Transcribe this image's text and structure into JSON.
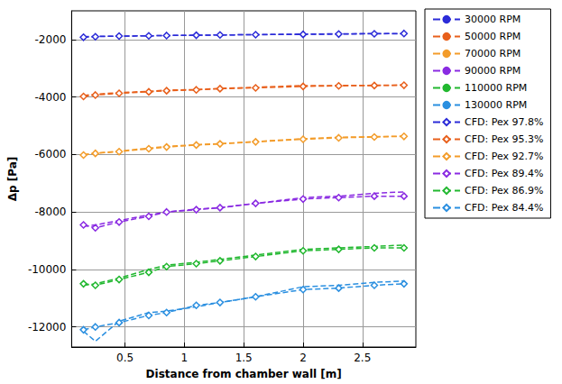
{
  "chart_data": {
    "type": "line",
    "x_label": "Distance from chamber wall [m]",
    "y_label": "Δp [Pa]",
    "xlim": [
      0.05,
      2.95
    ],
    "xticks": [
      0.5,
      1,
      1.5,
      2,
      2.5
    ],
    "ylim": [
      -12700,
      -1000
    ],
    "yticks": [
      -12000,
      -10000,
      -8000,
      -6000,
      -4000,
      -2000
    ],
    "grid": true,
    "legend": "right",
    "x": [
      0.15,
      0.25,
      0.45,
      0.7,
      0.85,
      1.1,
      1.3,
      1.6,
      2.0,
      2.3,
      2.6,
      2.85
    ],
    "series": [
      {
        "name": "30000 RPM",
        "color": "#2c2cd8",
        "marker": "none",
        "line_style": "dashed",
        "values": [
          -1900,
          -1890,
          -1880,
          -1870,
          -1860,
          -1850,
          -1840,
          -1830,
          -1810,
          -1800,
          -1790,
          -1800
        ]
      },
      {
        "name": "50000 RPM",
        "color": "#e8601c",
        "marker": "none",
        "line_style": "dashed",
        "values": [
          -3950,
          -3900,
          -3850,
          -3800,
          -3760,
          -3740,
          -3700,
          -3660,
          -3600,
          -3600,
          -3590,
          -3580
        ]
      },
      {
        "name": "70000 RPM",
        "color": "#f39c2a",
        "marker": "none",
        "line_style": "dashed",
        "values": [
          -6000,
          -5950,
          -5880,
          -5780,
          -5720,
          -5660,
          -5620,
          -5550,
          -5450,
          -5400,
          -5380,
          -5360
        ]
      },
      {
        "name": "90000 RPM",
        "color": "#8a2be2",
        "marker": "none",
        "line_style": "dashed",
        "values": [
          -8500,
          -8450,
          -8300,
          -8100,
          -8000,
          -7900,
          -7850,
          -7700,
          -7500,
          -7450,
          -7350,
          -7300
        ]
      },
      {
        "name": "110000 RPM",
        "color": "#22b830",
        "marker": "none",
        "line_style": "dashed",
        "values": [
          -10550,
          -10500,
          -10300,
          -10000,
          -9850,
          -9750,
          -9650,
          -9500,
          -9300,
          -9250,
          -9200,
          -9150
        ]
      },
      {
        "name": "130000 RPM",
        "color": "#2a8fe0",
        "marker": "none",
        "line_style": "dashed",
        "values": [
          -12150,
          -12500,
          -11800,
          -11500,
          -11450,
          -11300,
          -11150,
          -10950,
          -10600,
          -10550,
          -10450,
          -10400
        ]
      },
      {
        "name": "CFD: Pex 97.8%",
        "color": "#2c2cd8",
        "marker": "diamond",
        "line_style": "dashed",
        "values": [
          -1920,
          -1900,
          -1880,
          -1870,
          -1860,
          -1850,
          -1840,
          -1830,
          -1820,
          -1810,
          -1800,
          -1790
        ]
      },
      {
        "name": "CFD: Pex 95.3%",
        "color": "#e8601c",
        "marker": "diamond",
        "line_style": "dashed",
        "values": [
          -3980,
          -3930,
          -3870,
          -3820,
          -3780,
          -3750,
          -3710,
          -3680,
          -3630,
          -3610,
          -3600,
          -3590
        ]
      },
      {
        "name": "CFD: Pex 92.7%",
        "color": "#f39c2a",
        "marker": "diamond",
        "line_style": "dashed",
        "values": [
          -6020,
          -5960,
          -5900,
          -5800,
          -5740,
          -5670,
          -5630,
          -5560,
          -5470,
          -5420,
          -5390,
          -5370
        ]
      },
      {
        "name": "CFD: Pex 89.4%",
        "color": "#8a2be2",
        "marker": "diamond",
        "line_style": "dashed",
        "values": [
          -8450,
          -8550,
          -8350,
          -8150,
          -8000,
          -7920,
          -7850,
          -7700,
          -7550,
          -7500,
          -7450,
          -7450
        ]
      },
      {
        "name": "CFD: Pex 86.9%",
        "color": "#22b830",
        "marker": "diamond",
        "line_style": "dashed",
        "values": [
          -10500,
          -10550,
          -10350,
          -10100,
          -9900,
          -9800,
          -9700,
          -9550,
          -9350,
          -9300,
          -9250,
          -9250
        ]
      },
      {
        "name": "CFD: Pex 84.4%",
        "color": "#2a8fe0",
        "marker": "diamond",
        "line_style": "dashed",
        "values": [
          -12100,
          -12000,
          -11850,
          -11600,
          -11500,
          -11250,
          -11150,
          -10950,
          -10700,
          -10650,
          -10550,
          -10500
        ]
      }
    ]
  }
}
